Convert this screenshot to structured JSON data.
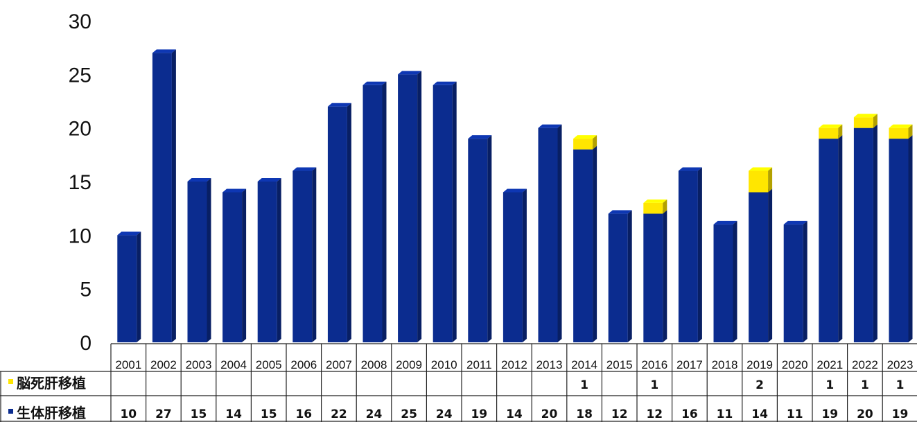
{
  "chart_data": {
    "type": "bar",
    "stacked": true,
    "categories": [
      "2001",
      "2002",
      "2003",
      "2004",
      "2005",
      "2006",
      "2007",
      "2008",
      "2009",
      "2010",
      "2011",
      "2012",
      "2013",
      "2014",
      "2015",
      "2016",
      "2017",
      "2018",
      "2019",
      "2020",
      "2021",
      "2022",
      "2023"
    ],
    "series": [
      {
        "name": "生体肝移植",
        "color": "#0b2c8f",
        "values": [
          10,
          27,
          15,
          14,
          15,
          16,
          22,
          24,
          25,
          24,
          19,
          14,
          20,
          18,
          12,
          12,
          16,
          11,
          14,
          11,
          19,
          20,
          19
        ]
      },
      {
        "name": "脳死肝移植",
        "color": "#ffe600",
        "values": [
          null,
          null,
          null,
          null,
          null,
          null,
          null,
          null,
          null,
          null,
          null,
          null,
          null,
          1,
          null,
          1,
          null,
          null,
          2,
          null,
          1,
          1,
          1
        ]
      }
    ],
    "ylim": [
      0,
      30
    ],
    "yticks": [
      0,
      5,
      10,
      15,
      20,
      25,
      30
    ],
    "grid": false,
    "legend_placement": "data-table-rows"
  }
}
